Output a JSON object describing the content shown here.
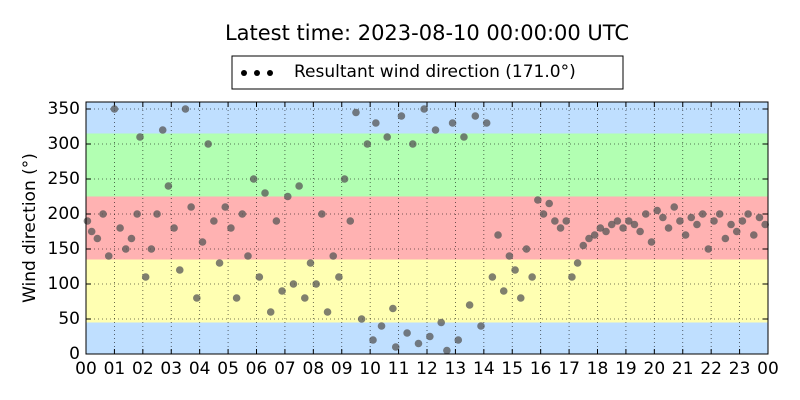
{
  "chart_data": {
    "type": "scatter",
    "title": "Latest time: 2023-08-10 00:00:00 UTC",
    "y_label": "Wind direction (°)",
    "legend": "top",
    "grid": true,
    "bands": [
      {
        "from": 0,
        "to": 45,
        "color": "#bfdfff"
      },
      {
        "from": 45,
        "to": 135,
        "color": "#ffffb2"
      },
      {
        "from": 135,
        "to": 225,
        "color": "#ffb2b2"
      },
      {
        "from": 225,
        "to": 315,
        "color": "#b2ffb2"
      },
      {
        "from": 315,
        "to": 360,
        "color": "#bfdfff"
      }
    ],
    "xlim": [
      0,
      24
    ],
    "xticks": [
      {
        "value": 0,
        "label": "00"
      },
      {
        "value": 1,
        "label": "01"
      },
      {
        "value": 2,
        "label": "02"
      },
      {
        "value": 3,
        "label": "03"
      },
      {
        "value": 4,
        "label": "04"
      },
      {
        "value": 5,
        "label": "05"
      },
      {
        "value": 6,
        "label": "06"
      },
      {
        "value": 7,
        "label": "07"
      },
      {
        "value": 8,
        "label": "08"
      },
      {
        "value": 9,
        "label": "09"
      },
      {
        "value": 10,
        "label": "10"
      },
      {
        "value": 11,
        "label": "11"
      },
      {
        "value": 12,
        "label": "12"
      },
      {
        "value": 13,
        "label": "13"
      },
      {
        "value": 14,
        "label": "14"
      },
      {
        "value": 15,
        "label": "15"
      },
      {
        "value": 16,
        "label": "16"
      },
      {
        "value": 17,
        "label": "17"
      },
      {
        "value": 18,
        "label": "18"
      },
      {
        "value": 19,
        "label": "19"
      },
      {
        "value": 20,
        "label": "20"
      },
      {
        "value": 21,
        "label": "21"
      },
      {
        "value": 22,
        "label": "22"
      },
      {
        "value": 23,
        "label": "23"
      },
      {
        "value": 24,
        "label": "00"
      }
    ],
    "ylim": [
      0,
      360
    ],
    "yticks": [
      0,
      50,
      100,
      150,
      200,
      250,
      300,
      350
    ],
    "series": [
      {
        "name": "Resultant wind direction (171.0°)",
        "color": "#555555",
        "x": [
          0.05,
          0.2,
          0.4,
          0.6,
          0.8,
          1.0,
          1.2,
          1.4,
          1.6,
          1.8,
          1.9,
          2.1,
          2.3,
          2.5,
          2.7,
          2.9,
          3.1,
          3.3,
          3.5,
          3.7,
          3.9,
          4.1,
          4.3,
          4.5,
          4.7,
          4.9,
          5.1,
          5.3,
          5.5,
          5.7,
          5.9,
          6.1,
          6.3,
          6.5,
          6.7,
          6.9,
          7.1,
          7.3,
          7.5,
          7.7,
          7.9,
          8.1,
          8.3,
          8.5,
          8.7,
          8.9,
          9.1,
          9.3,
          9.5,
          9.7,
          9.9,
          10.1,
          10.2,
          10.4,
          10.6,
          10.8,
          10.9,
          11.1,
          11.3,
          11.5,
          11.7,
          11.9,
          12.1,
          12.3,
          12.5,
          12.7,
          12.9,
          13.1,
          13.3,
          13.5,
          13.7,
          13.9,
          14.1,
          14.3,
          14.5,
          14.7,
          14.9,
          15.1,
          15.3,
          15.5,
          15.7,
          15.9,
          16.1,
          16.3,
          16.5,
          16.7,
          16.9,
          17.1,
          17.3,
          17.5,
          17.7,
          17.9,
          18.1,
          18.3,
          18.5,
          18.7,
          18.9,
          19.1,
          19.3,
          19.5,
          19.7,
          19.9,
          20.1,
          20.3,
          20.5,
          20.7,
          20.9,
          21.1,
          21.3,
          21.5,
          21.7,
          21.9,
          22.1,
          22.3,
          22.5,
          22.7,
          22.9,
          23.1,
          23.3,
          23.5,
          23.7,
          23.9
        ],
        "values": [
          190,
          175,
          165,
          200,
          140,
          350,
          180,
          150,
          165,
          200,
          310,
          110,
          150,
          200,
          320,
          240,
          180,
          120,
          350,
          210,
          80,
          160,
          300,
          190,
          130,
          210,
          180,
          80,
          200,
          140,
          250,
          110,
          230,
          60,
          190,
          90,
          225,
          100,
          240,
          80,
          130,
          100,
          200,
          60,
          140,
          110,
          250,
          190,
          345,
          50,
          300,
          20,
          330,
          40,
          310,
          65,
          10,
          340,
          30,
          300,
          15,
          350,
          25,
          320,
          45,
          5,
          330,
          20,
          310,
          70,
          340,
          40,
          330,
          110,
          170,
          90,
          140,
          120,
          80,
          150,
          110,
          220,
          200,
          215,
          190,
          180,
          190,
          110,
          130,
          155,
          165,
          170,
          180,
          175,
          185,
          190,
          180,
          190,
          185,
          175,
          200,
          160,
          205,
          195,
          180,
          210,
          190,
          170,
          195,
          185,
          200,
          150,
          190,
          200,
          165,
          185,
          175,
          190,
          200,
          170,
          195,
          185
        ]
      }
    ]
  }
}
